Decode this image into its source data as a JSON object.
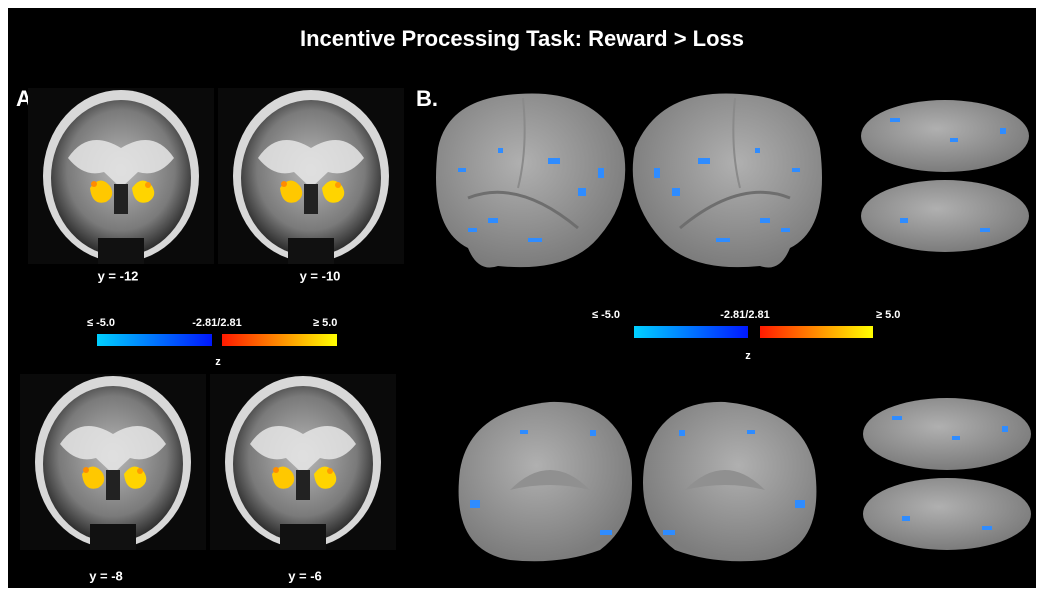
{
  "title": "Incentive Processing Task: Reward > Loss",
  "panel_a": {
    "label": "A.",
    "slices": [
      "y = -12",
      "y = -10",
      "y = -8",
      "y = -6"
    ],
    "colorbar": {
      "min_label": "≤ -5.0",
      "mid_label": "-2.81/2.81",
      "max_label": "≥ 5.0",
      "axis_label": "z"
    }
  },
  "panel_b": {
    "label": "B.",
    "colorbar": {
      "min_label": "≤ -5.0",
      "mid_label": "-2.81/2.81",
      "max_label": "≥ 5.0",
      "axis_label": "z"
    }
  }
}
